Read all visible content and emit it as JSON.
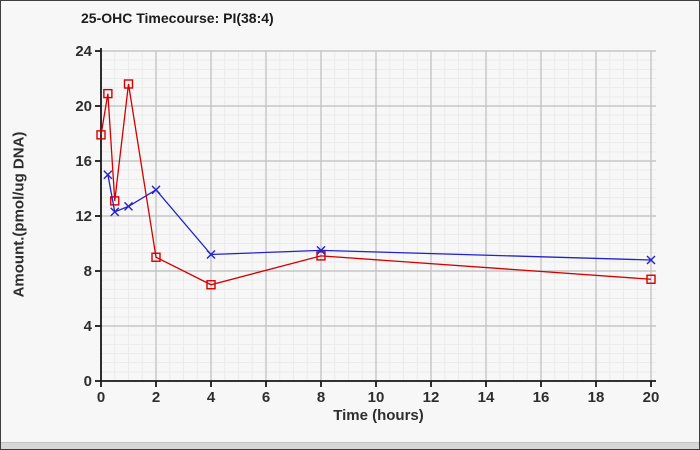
{
  "colors": {
    "background": "#f7f7f7",
    "window_border": "#3f3f3f",
    "bottom_bar": "#d7d7d7",
    "axis": "#1a1a1a",
    "grid_major": "#c5c5c5",
    "grid_minor": "#ebebeb",
    "text": "#2e2e2e",
    "series_red": "#d40000",
    "series_blue": "#2323c8"
  },
  "chart_data": {
    "type": "line",
    "title": "25-OHC Timecourse: PI(38:4)",
    "xlabel": "Time (hours)",
    "ylabel": "Amount.(pmol/ug DNA)",
    "xlim": [
      0,
      20
    ],
    "ylim": [
      0,
      24
    ],
    "x_ticks": [
      0,
      2,
      4,
      6,
      8,
      10,
      12,
      14,
      16,
      18,
      20
    ],
    "y_ticks": [
      0,
      4,
      8,
      12,
      16,
      20,
      24
    ],
    "x_minor_step": 0.5,
    "y_minor_step": 0.6667,
    "grid": "major+minor",
    "legend": "none",
    "series": [
      {
        "name": "series-red-squares",
        "color": "#d40000",
        "marker": "open-square",
        "x": [
          0,
          0.25,
          0.5,
          1,
          2,
          4,
          8,
          20
        ],
        "y": [
          17.9,
          20.9,
          13.1,
          21.6,
          9.0,
          7.0,
          9.1,
          7.4
        ]
      },
      {
        "name": "series-blue-x",
        "color": "#2323c8",
        "marker": "x-cross",
        "x": [
          0.25,
          0.5,
          1,
          2,
          4,
          8,
          20
        ],
        "y": [
          15.0,
          12.3,
          12.7,
          13.9,
          9.2,
          9.5,
          8.8
        ]
      }
    ]
  }
}
